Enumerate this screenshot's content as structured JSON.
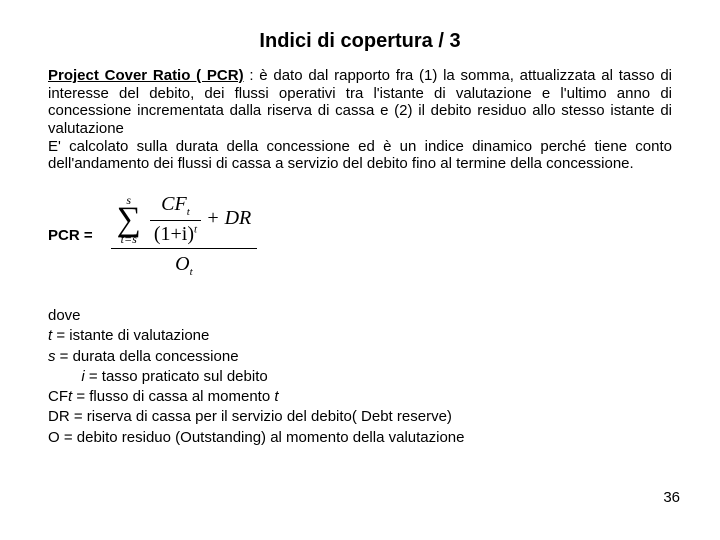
{
  "title": "Indici di copertura / 3",
  "label_bu": "Project Cover Ratio ( PCR)",
  "para_rest": " : è dato dal rapporto fra (1) la somma, attualizzata al tasso di interesse del debito, dei flussi operativi tra l'istante di valutazione e l'ultimo anno di concessione incrementata dalla riserva di cassa e (2) il debito residuo allo stesso istante di valutazione",
  "para2": "E' calcolato sulla durata della concessione  ed è un indice dinamico perché tiene conto dell'andamento  dei flussi di cassa a servizio del debito fino al termine della concessione.",
  "pcr_label": "PCR =",
  "formula": {
    "sigma_top": "s",
    "sigma_bot": "t=s",
    "cf": "CF",
    "cf_sub": "t",
    "one_plus_i": "(1+i)",
    "exp": "t",
    "plus_dr": " + DR",
    "O": "O",
    "O_sub": "t"
  },
  "dove": {
    "dove": "dove",
    "t": "t",
    "t_rest": " = istante di valutazione",
    "s": "s",
    "s_rest": " = durata della concessione",
    "i_indent": "        ",
    "i": "i",
    "i_rest": " = tasso praticato sul debito",
    "cf_pre": "CF",
    "cf_it": "t",
    "cf_rest": " = flusso di cassa al momento ",
    "cf_tail_it": "t",
    "dr": "DR = riserva di cassa  per il servizio del debito( Debt reserve)",
    "o": "O = debito residuo (Outstanding) al momento della valutazione"
  },
  "pagenum": "36"
}
